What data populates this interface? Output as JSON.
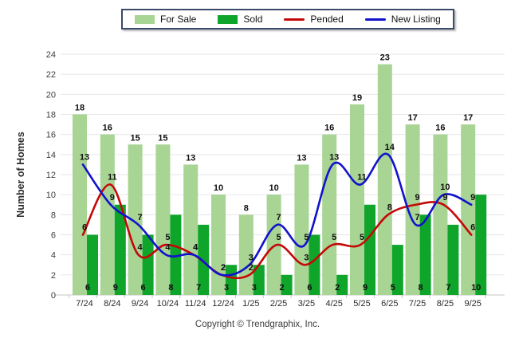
{
  "chart_data": {
    "type": "combo (grouped bars + smoothed lines)",
    "title": "",
    "categories": [
      "7/24",
      "8/24",
      "9/24",
      "10/24",
      "11/24",
      "12/24",
      "1/25",
      "2/25",
      "3/25",
      "4/25",
      "5/25",
      "6/25",
      "7/25",
      "8/25",
      "9/25"
    ],
    "series": [
      {
        "name": "For Sale",
        "type": "bar",
        "color": "#A8D494",
        "values": [
          18,
          16,
          15,
          15,
          13,
          10,
          8,
          10,
          13,
          16,
          19,
          23,
          17,
          16,
          17
        ]
      },
      {
        "name": "Sold",
        "type": "bar",
        "color": "#0FA52B",
        "values": [
          6,
          9,
          6,
          8,
          7,
          3,
          3,
          2,
          6,
          2,
          9,
          5,
          8,
          7,
          10
        ]
      },
      {
        "name": "Pended",
        "type": "line",
        "color": "#C40808",
        "values": [
          6,
          11,
          4,
          5,
          4,
          2,
          2,
          5,
          3,
          5,
          5,
          8,
          9,
          9,
          6
        ]
      },
      {
        "name": "New Listing",
        "type": "line",
        "color": "#1212CC",
        "values": [
          13,
          9,
          7,
          4,
          4,
          2,
          3,
          7,
          5,
          13,
          11,
          14,
          7,
          10,
          9
        ]
      }
    ],
    "ylabel": "Number of Homes",
    "xlabel": "",
    "ylim": [
      0,
      24
    ],
    "ytick_step": 2,
    "grid": "horizontal gridlines every 2 units",
    "legend_position": "top-center",
    "footer": "Copyright © Trendgraphix, Inc."
  },
  "colors": {
    "grid": "#E6E6E6",
    "axis": "#C6C6C6",
    "tick_label": "#3D3D3D",
    "data_label": "#101010",
    "legend_border": "#3A4A68"
  }
}
